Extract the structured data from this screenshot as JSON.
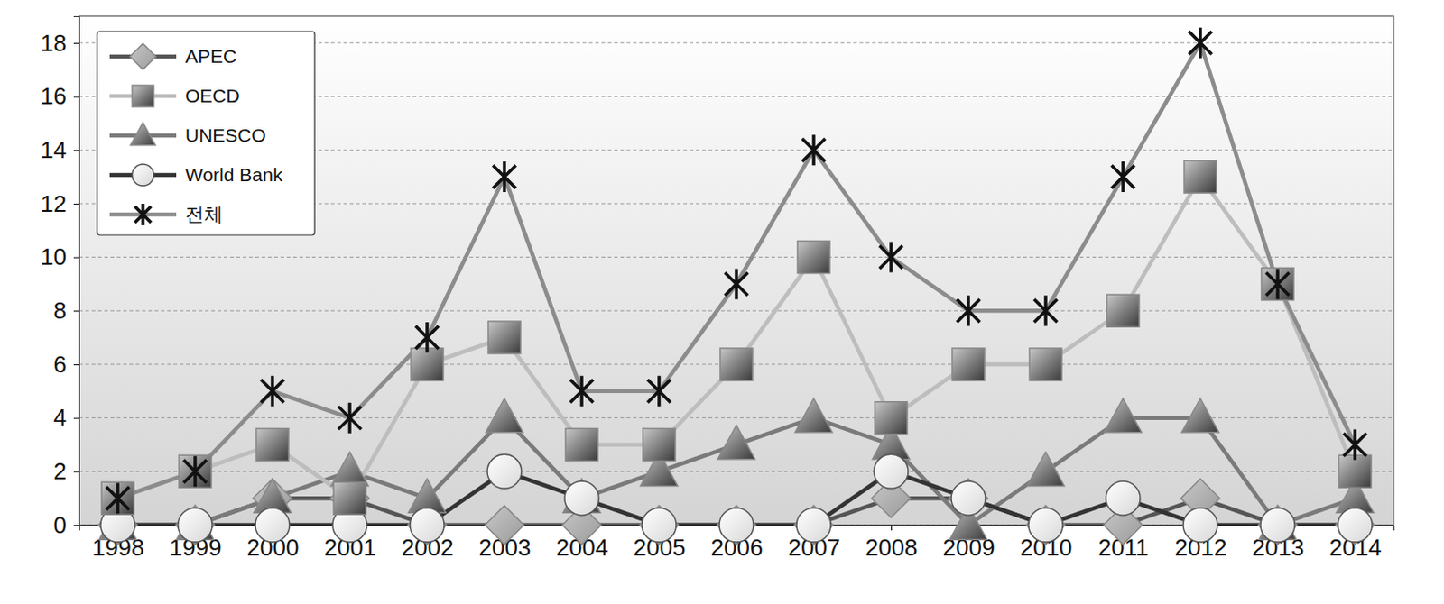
{
  "chart_data": {
    "type": "line",
    "categories": [
      "1998",
      "1999",
      "2000",
      "2001",
      "2002",
      "2003",
      "2004",
      "2005",
      "2006",
      "2007",
      "2008",
      "2009",
      "2010",
      "2011",
      "2012",
      "2013",
      "2014"
    ],
    "series": [
      {
        "name": "APEC",
        "color": "#555555",
        "marker": "diamond",
        "values": [
          0,
          0,
          1,
          1,
          0,
          0,
          0,
          0,
          0,
          0,
          1,
          1,
          0,
          0,
          1,
          0,
          0
        ]
      },
      {
        "name": "OECD",
        "color": "#bdbdbd",
        "marker": "square",
        "values": [
          1,
          2,
          3,
          1,
          6,
          7,
          3,
          3,
          6,
          10,
          4,
          6,
          6,
          8,
          13,
          9,
          2
        ]
      },
      {
        "name": "UNESCO",
        "color": "#7a7a7a",
        "marker": "triangle",
        "values": [
          0,
          0,
          1,
          2,
          1,
          4,
          1,
          2,
          3,
          4,
          3,
          0,
          2,
          4,
          4,
          0,
          1
        ]
      },
      {
        "name": "World Bank",
        "color": "#333333",
        "marker": "circle",
        "values": [
          0,
          0,
          0,
          0,
          0,
          2,
          1,
          0,
          0,
          0,
          2,
          1,
          0,
          1,
          0,
          0,
          0
        ]
      },
      {
        "name": "전체",
        "color": "#8c8c8c",
        "marker": "asterisk",
        "values": [
          1,
          2,
          5,
          4,
          7,
          13,
          5,
          5,
          9,
          14,
          10,
          8,
          8,
          13,
          18,
          9,
          3
        ]
      }
    ],
    "ylim": [
      0,
      19
    ],
    "yticks": [
      0,
      2,
      4,
      6,
      8,
      10,
      12,
      14,
      16,
      18
    ],
    "grid": true,
    "legend": "top-left"
  }
}
